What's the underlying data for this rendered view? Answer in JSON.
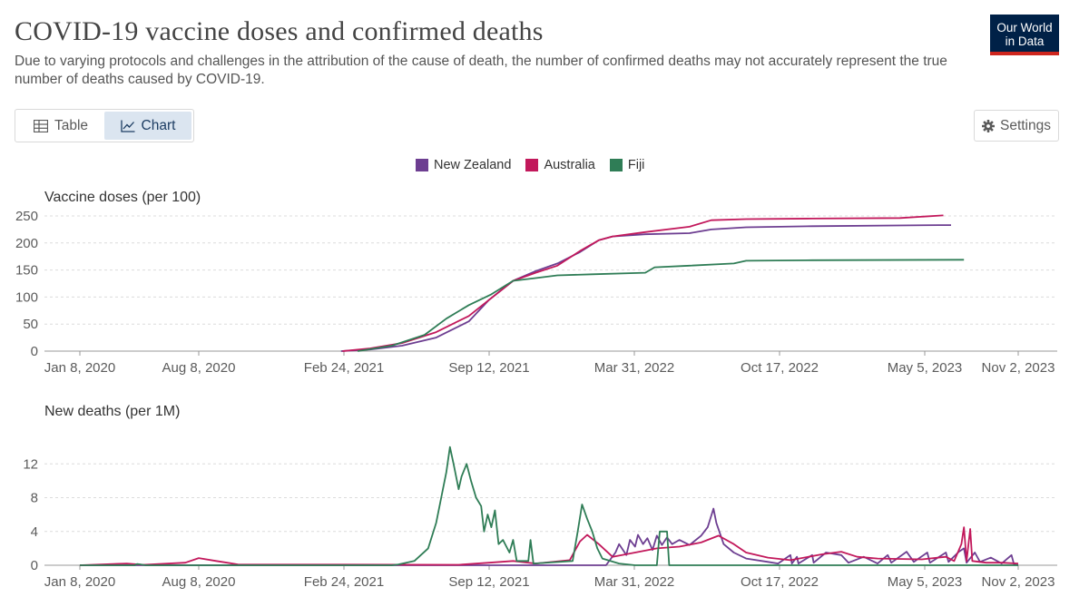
{
  "header": {
    "title": "COVID-19 vaccine doses and confirmed deaths",
    "subtitle": "Due to varying protocols and challenges in the attribution of the cause of death, the number of confirmed deaths may not accurately represent the true number of deaths caused by COVID-19.",
    "logo_line1": "Our World",
    "logo_line2": "in Data"
  },
  "controls": {
    "table_label": "Table",
    "chart_label": "Chart",
    "settings_label": "Settings"
  },
  "colors": {
    "new_zealand": "#6d3e91",
    "australia": "#c2185b",
    "fiji": "#2f7d56"
  },
  "chart_data": [
    {
      "type": "line",
      "title": "Vaccine doses (per 100)",
      "x_tick_labels": [
        "Jan 8, 2020",
        "Aug 8, 2020",
        "Feb 24, 2021",
        "Sep 12, 2021",
        "Mar 31, 2022",
        "Oct 17, 2022",
        "May 5, 2023",
        "Nov 2, 2023"
      ],
      "x_range": [
        "2020-01-08",
        "2023-11-02"
      ],
      "y_ticks": [
        0,
        50,
        100,
        150,
        200,
        250
      ],
      "ylim": [
        0,
        260
      ],
      "legend": "top-center",
      "grid": "horizontal-dashed",
      "series": [
        {
          "name": "New Zealand",
          "color": "#6d3e91",
          "points": [
            [
              "2021-02-20",
              0
            ],
            [
              "2021-04-01",
              3
            ],
            [
              "2021-05-15",
              10
            ],
            [
              "2021-07-01",
              25
            ],
            [
              "2021-08-15",
              55
            ],
            [
              "2021-09-12",
              95
            ],
            [
              "2021-10-15",
              130
            ],
            [
              "2021-11-15",
              148
            ],
            [
              "2021-12-15",
              162
            ],
            [
              "2022-01-15",
              183
            ],
            [
              "2022-02-10",
              205
            ],
            [
              "2022-03-01",
              212
            ],
            [
              "2022-04-15",
              216
            ],
            [
              "2022-06-15",
              218
            ],
            [
              "2022-07-15",
              225
            ],
            [
              "2022-09-01",
              229
            ],
            [
              "2022-12-01",
              231
            ],
            [
              "2023-06-01",
              233
            ],
            [
              "2023-06-25",
              233
            ]
          ]
        },
        {
          "name": "Australia",
          "color": "#c2185b",
          "points": [
            [
              "2021-02-22",
              0
            ],
            [
              "2021-04-01",
              5
            ],
            [
              "2021-05-15",
              15
            ],
            [
              "2021-07-01",
              35
            ],
            [
              "2021-08-15",
              65
            ],
            [
              "2021-09-12",
              95
            ],
            [
              "2021-10-15",
              130
            ],
            [
              "2021-11-15",
              145
            ],
            [
              "2021-12-15",
              158
            ],
            [
              "2022-01-15",
              185
            ],
            [
              "2022-02-10",
              205
            ],
            [
              "2022-03-01",
              212
            ],
            [
              "2022-04-15",
              220
            ],
            [
              "2022-06-15",
              230
            ],
            [
              "2022-07-15",
              242
            ],
            [
              "2022-09-01",
              244
            ],
            [
              "2022-12-01",
              245
            ],
            [
              "2023-04-01",
              246
            ],
            [
              "2023-06-10",
              251
            ]
          ]
        },
        {
          "name": "Fiji",
          "color": "#2f7d56",
          "points": [
            [
              "2021-03-15",
              0
            ],
            [
              "2021-05-01",
              10
            ],
            [
              "2021-06-15",
              30
            ],
            [
              "2021-07-15",
              60
            ],
            [
              "2021-08-15",
              85
            ],
            [
              "2021-09-15",
              105
            ],
            [
              "2021-10-15",
              130
            ],
            [
              "2021-11-15",
              135
            ],
            [
              "2021-12-15",
              140
            ],
            [
              "2022-02-01",
              142
            ],
            [
              "2022-04-15",
              145
            ],
            [
              "2022-04-28",
              155
            ],
            [
              "2022-06-15",
              158
            ],
            [
              "2022-08-15",
              162
            ],
            [
              "2022-09-01",
              167
            ],
            [
              "2022-12-01",
              168
            ],
            [
              "2023-07-20",
              169
            ]
          ]
        }
      ]
    },
    {
      "type": "line",
      "title": "New deaths (per 1M)",
      "x_tick_labels": [
        "Jan 8, 2020",
        "Aug 8, 2020",
        "Feb 24, 2021",
        "Sep 12, 2021",
        "Mar 31, 2022",
        "Oct 17, 2022",
        "May 5, 2023",
        "Nov 2, 2023"
      ],
      "x_range": [
        "2020-01-08",
        "2023-11-02"
      ],
      "y_ticks": [
        0,
        4,
        8,
        12
      ],
      "ylim": [
        0,
        14.5
      ],
      "grid": "horizontal-dashed",
      "series": [
        {
          "name": "New Zealand",
          "color": "#6d3e91",
          "points": [
            [
              "2020-01-08",
              0
            ],
            [
              "2022-02-20",
              0
            ],
            [
              "2022-03-05",
              1.5
            ],
            [
              "2022-03-10",
              2.5
            ],
            [
              "2022-03-20",
              1.2
            ],
            [
              "2022-03-25",
              3.0
            ],
            [
              "2022-04-01",
              2.2
            ],
            [
              "2022-04-05",
              3.6
            ],
            [
              "2022-04-12",
              2.5
            ],
            [
              "2022-04-18",
              3.2
            ],
            [
              "2022-04-25",
              1.8
            ],
            [
              "2022-05-01",
              3.5
            ],
            [
              "2022-05-08",
              2.4
            ],
            [
              "2022-05-15",
              3.3
            ],
            [
              "2022-05-22",
              2.5
            ],
            [
              "2022-06-01",
              3.0
            ],
            [
              "2022-06-15",
              2.4
            ],
            [
              "2022-07-01",
              3.5
            ],
            [
              "2022-07-10",
              4.5
            ],
            [
              "2022-07-18",
              6.7
            ],
            [
              "2022-07-22",
              5.0
            ],
            [
              "2022-08-01",
              2.5
            ],
            [
              "2022-08-15",
              1.5
            ],
            [
              "2022-09-01",
              0.8
            ],
            [
              "2022-10-01",
              0.4
            ],
            [
              "2022-10-15",
              0.2
            ],
            [
              "2022-11-01",
              1.2
            ],
            [
              "2022-11-03",
              0.2
            ],
            [
              "2022-11-10",
              1.0
            ],
            [
              "2022-11-12",
              0.2
            ],
            [
              "2022-12-01",
              1.2
            ],
            [
              "2022-12-03",
              0.3
            ],
            [
              "2022-12-20",
              1.5
            ],
            [
              "2023-01-10",
              1.2
            ],
            [
              "2023-01-20",
              0.3
            ],
            [
              "2023-02-10",
              1.0
            ],
            [
              "2023-03-01",
              0.2
            ],
            [
              "2023-03-15",
              1.2
            ],
            [
              "2023-03-20",
              0.3
            ],
            [
              "2023-04-10",
              1.6
            ],
            [
              "2023-04-20",
              0.4
            ],
            [
              "2023-05-10",
              1.5
            ],
            [
              "2023-05-15",
              0.3
            ],
            [
              "2023-06-15",
              1.5
            ],
            [
              "2023-06-20",
              0.4
            ],
            [
              "2023-07-10",
              1.6
            ],
            [
              "2023-07-20",
              2.0
            ],
            [
              "2023-07-25",
              0.3
            ],
            [
              "2023-08-10",
              1.5
            ],
            [
              "2023-08-20",
              0.4
            ],
            [
              "2023-09-10",
              0.9
            ],
            [
              "2023-10-01",
              0.2
            ],
            [
              "2023-10-20",
              1.2
            ],
            [
              "2023-10-25",
              0.1
            ],
            [
              "2023-11-02",
              0
            ]
          ]
        },
        {
          "name": "Australia",
          "color": "#c2185b",
          "points": [
            [
              "2020-01-08",
              0
            ],
            [
              "2020-04-01",
              0.2
            ],
            [
              "2020-05-01",
              0.05
            ],
            [
              "2020-07-15",
              0.3
            ],
            [
              "2020-08-08",
              0.85
            ],
            [
              "2020-09-01",
              0.5
            ],
            [
              "2020-10-01",
              0.1
            ],
            [
              "2021-08-01",
              0.05
            ],
            [
              "2021-09-12",
              0.3
            ],
            [
              "2021-10-15",
              0.5
            ],
            [
              "2021-11-15",
              0.2
            ],
            [
              "2022-01-01",
              0.6
            ],
            [
              "2022-01-15",
              2.8
            ],
            [
              "2022-01-25",
              3.6
            ],
            [
              "2022-02-10",
              2.5
            ],
            [
              "2022-03-01",
              1.0
            ],
            [
              "2022-04-01",
              1.5
            ],
            [
              "2022-05-01",
              2.0
            ],
            [
              "2022-06-01",
              2.2
            ],
            [
              "2022-07-01",
              2.7
            ],
            [
              "2022-07-25",
              3.5
            ],
            [
              "2022-08-15",
              2.5
            ],
            [
              "2022-09-01",
              1.5
            ],
            [
              "2022-10-01",
              0.9
            ],
            [
              "2022-11-01",
              0.6
            ],
            [
              "2022-12-15",
              1.3
            ],
            [
              "2023-01-10",
              1.6
            ],
            [
              "2023-02-01",
              1.0
            ],
            [
              "2023-03-01",
              0.8
            ],
            [
              "2023-05-01",
              0.7
            ],
            [
              "2023-06-15",
              1.0
            ],
            [
              "2023-07-01",
              0.5
            ],
            [
              "2023-07-15",
              2.5
            ],
            [
              "2023-07-20",
              4.5
            ],
            [
              "2023-07-25",
              0.5
            ],
            [
              "2023-08-01",
              4.3
            ],
            [
              "2023-08-05",
              0.5
            ],
            [
              "2023-09-01",
              0.3
            ],
            [
              "2023-10-01",
              0.3
            ],
            [
              "2023-11-02",
              0.2
            ]
          ]
        },
        {
          "name": "Fiji",
          "color": "#2f7d56",
          "points": [
            [
              "2020-01-08",
              0
            ],
            [
              "2020-04-15",
              0
            ],
            [
              "2020-04-20",
              0.15
            ],
            [
              "2020-05-05",
              0
            ],
            [
              "2021-05-01",
              0
            ],
            [
              "2021-05-10",
              0.1
            ],
            [
              "2021-06-01",
              0.5
            ],
            [
              "2021-06-20",
              2.0
            ],
            [
              "2021-07-01",
              5.0
            ],
            [
              "2021-07-08",
              8.0
            ],
            [
              "2021-07-15",
              11.0
            ],
            [
              "2021-07-20",
              14.0
            ],
            [
              "2021-07-25",
              12.0
            ],
            [
              "2021-08-01",
              9.0
            ],
            [
              "2021-08-05",
              10.5
            ],
            [
              "2021-08-12",
              12.0
            ],
            [
              "2021-08-18",
              10.0
            ],
            [
              "2021-08-25",
              8.0
            ],
            [
              "2021-09-01",
              7.0
            ],
            [
              "2021-09-05",
              4.0
            ],
            [
              "2021-09-10",
              6.0
            ],
            [
              "2021-09-15",
              4.5
            ],
            [
              "2021-09-20",
              6.5
            ],
            [
              "2021-09-25",
              2.5
            ],
            [
              "2021-10-01",
              3.0
            ],
            [
              "2021-10-10",
              1.5
            ],
            [
              "2021-10-15",
              3.0
            ],
            [
              "2021-10-20",
              0.5
            ],
            [
              "2021-11-05",
              0.5
            ],
            [
              "2021-11-08",
              3.0
            ],
            [
              "2021-11-12",
              0.2
            ],
            [
              "2022-01-05",
              0.5
            ],
            [
              "2022-01-12",
              4.0
            ],
            [
              "2022-01-18",
              7.2
            ],
            [
              "2022-01-25",
              5.5
            ],
            [
              "2022-02-01",
              4.0
            ],
            [
              "2022-02-08",
              2.0
            ],
            [
              "2022-02-15",
              0.8
            ],
            [
              "2022-03-10",
              0.2
            ],
            [
              "2022-04-01",
              0
            ],
            [
              "2022-05-01",
              0
            ],
            [
              "2022-05-05",
              4.0
            ],
            [
              "2022-05-15",
              4.0
            ],
            [
              "2022-05-18",
              0
            ],
            [
              "2022-08-01",
              0
            ],
            [
              "2022-09-01",
              0
            ],
            [
              "2022-12-01",
              0
            ],
            [
              "2023-11-02",
              0
            ]
          ]
        }
      ]
    }
  ]
}
